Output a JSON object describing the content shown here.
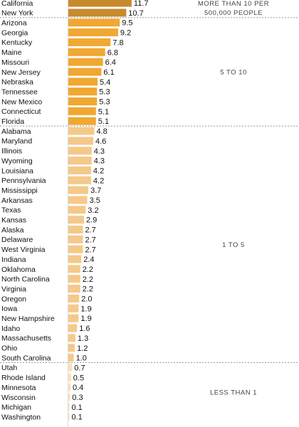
{
  "chart_data": {
    "type": "bar",
    "orientation": "horizontal",
    "categories": [
      "California",
      "New York",
      "Arizona",
      "Georgia",
      "Kentucky",
      "Maine",
      "Missouri",
      "New Jersey",
      "Nebraska",
      "Tennessee",
      "New Mexico",
      "Connecticut",
      "Florida",
      "Alabama",
      "Maryland",
      "Illinois",
      "Wyoming",
      "Louisiana",
      "Pennsylvania",
      "Mississippi",
      "Arkansas",
      "Texas",
      "Kansas",
      "Alaska",
      "Delaware",
      "West Virginia",
      "Indiana",
      "Oklahoma",
      "North Carolina",
      "Virginia",
      "Oregon",
      "Iowa",
      "New Hampshire",
      "Idaho",
      "Massachusetts",
      "Ohio",
      "South Carolina",
      "Utah",
      "Rhode Island",
      "Minnesota",
      "Wisconsin",
      "Michigan",
      "Washington"
    ],
    "values": [
      11.7,
      10.7,
      9.5,
      9.2,
      7.8,
      6.8,
      6.4,
      6.1,
      5.4,
      5.3,
      5.3,
      5.1,
      5.1,
      4.8,
      4.6,
      4.3,
      4.3,
      4.2,
      4.2,
      3.7,
      3.5,
      3.2,
      2.9,
      2.7,
      2.7,
      2.7,
      2.4,
      2.2,
      2.2,
      2.2,
      2.0,
      1.9,
      1.9,
      1.6,
      1.3,
      1.2,
      1.0,
      0.7,
      0.5,
      0.4,
      0.3,
      0.1,
      0.1
    ],
    "value_labels": [
      "11.7",
      "10.7",
      "9.5",
      "9.2",
      "7.8",
      "6.8",
      "6.4",
      "6.1",
      "5.4",
      "5.3",
      "5.3",
      "5.1",
      "5.1",
      "4.8",
      "4.6",
      "4.3",
      "4.3",
      "4.2",
      "4.2",
      "3.7",
      "3.5",
      "3.2",
      "2.9",
      "2.7",
      "2.7",
      "2.7",
      "2.4",
      "2.2",
      "2.2",
      "2.2",
      "2.0",
      "1.9",
      "1.9",
      "1.6",
      "1.3",
      "1.2",
      "1.0",
      "0.7",
      "0.5",
      "0.4",
      "0.3",
      "0.1",
      "0.1"
    ],
    "groups": [
      {
        "label": "MORE THAN 10 PER 500,000 PEOPLE",
        "label_lines": [
          "MORE THAN 10 PER",
          "500,000 PEOPLE"
        ],
        "start": 0,
        "end": 1,
        "color": "#c88a2f"
      },
      {
        "label": "5 TO 10",
        "label_lines": [
          "5 TO 10"
        ],
        "start": 2,
        "end": 12,
        "color": "#f0a832"
      },
      {
        "label": "1 TO 5",
        "label_lines": [
          "1 TO 5"
        ],
        "start": 13,
        "end": 36,
        "color": "#f4c98a"
      },
      {
        "label": "LESS THAN 1",
        "label_lines": [
          "LESS THAN 1"
        ],
        "start": 37,
        "end": 42,
        "color": "#f8e1b8"
      }
    ],
    "xlim": [
      0,
      12
    ],
    "title": "",
    "xlabel": "",
    "ylabel": "",
    "grid": false,
    "legend": "none"
  }
}
